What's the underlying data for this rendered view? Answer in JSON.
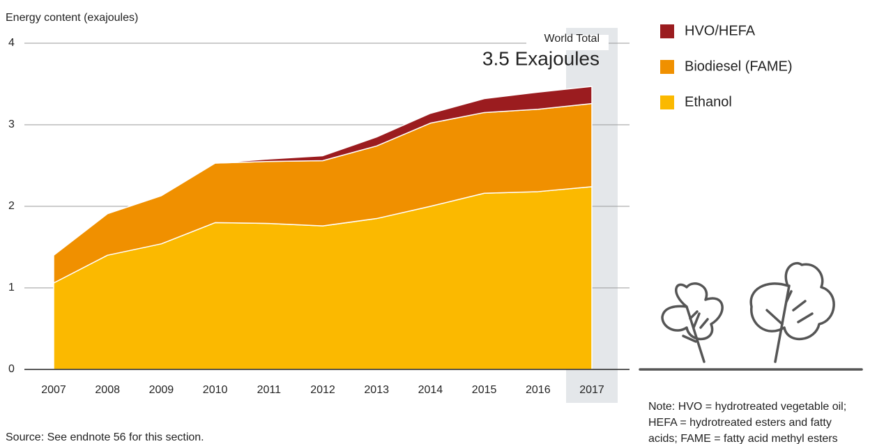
{
  "chart_data": {
    "type": "stacked_area",
    "y_axis_label": "Energy content (exajoules)",
    "categories": [
      "2007",
      "2008",
      "2009",
      "2010",
      "2011",
      "2012",
      "2013",
      "2014",
      "2015",
      "2016",
      "2017"
    ],
    "series": [
      {
        "name": "HVO/HEFA",
        "color": "#9b1c1f",
        "values": [
          0,
          0,
          0,
          0,
          0.03,
          0.06,
          0.11,
          0.12,
          0.17,
          0.21,
          0.21
        ]
      },
      {
        "name": "Biodiesel (FAME)",
        "color": "#f09000",
        "values": [
          0.34,
          0.51,
          0.59,
          0.73,
          0.76,
          0.8,
          0.89,
          1.02,
          0.99,
          1.01,
          1.02
        ]
      },
      {
        "name": "Ethanol",
        "color": "#fbb900",
        "values": [
          1.06,
          1.4,
          1.54,
          1.8,
          1.79,
          1.76,
          1.85,
          2.0,
          2.16,
          2.18,
          2.24
        ]
      }
    ],
    "ylim": [
      0,
      4
    ],
    "yticks": [
      0,
      1,
      2,
      3,
      4
    ],
    "grid": true,
    "highlight": "2017",
    "annotation_label": "World Total",
    "annotation_value": "3.5 Exajoules",
    "note": [
      "Note: HVO = hydrotreated vegetable oil;",
      "HEFA = hydrotreated esters and fatty",
      "acids; FAME = fatty acid methyl esters"
    ],
    "source": "Source: See endnote 56 for this section."
  }
}
